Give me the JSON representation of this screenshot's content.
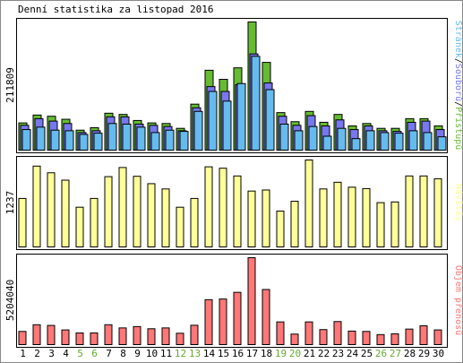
{
  "chart_data": {
    "type": "bar",
    "title": "Denní statistika za listopad 2016",
    "categories": [
      "1",
      "2",
      "3",
      "4",
      "5",
      "6",
      "7",
      "8",
      "9",
      "10",
      "11",
      "12",
      "13",
      "14",
      "15",
      "16",
      "17",
      "18",
      "19",
      "20",
      "21",
      "22",
      "23",
      "24",
      "25",
      "26",
      "27",
      "28",
      "29",
      "30"
    ],
    "weekend_days": [
      "5",
      "6",
      "12",
      "13",
      "19",
      "20",
      "26",
      "27"
    ],
    "colors": {
      "frame": "#000000",
      "grid": "#c8c8c8",
      "weekday_label": "#000000",
      "weekend_label": "#66aa33",
      "hits": "#66bb33",
      "files": "#7777ee",
      "pages": "#66bbee",
      "visits": "#ffff99",
      "volume": "#ff7777"
    },
    "panels": [
      {
        "name": "requests",
        "max_label": "211809",
        "ymax": 211809,
        "ylabel_parts": [
          "Stránek",
          "Souborů",
          "Přístupů"
        ],
        "ylabel_separator": "/",
        "series": [
          {
            "name": "Přístupů",
            "color": "#66bb33",
            "values": [
              45000,
              58000,
              56000,
              51000,
              33000,
              37000,
              61000,
              59000,
              49000,
              45000,
              44000,
              36000,
              76000,
              132000,
              117000,
              136000,
              211809,
              145000,
              62000,
              47000,
              64000,
              46000,
              59000,
              40000,
              44000,
              36000,
              36000,
              52000,
              52000,
              40000
            ]
          },
          {
            "name": "Souborů",
            "color": "#7777ee",
            "values": [
              41000,
              52000,
              48000,
              44000,
              29000,
              32000,
              55000,
              55000,
              43000,
              41000,
              39000,
              32000,
              70000,
              105000,
              97000,
              108000,
              159000,
              111000,
              56000,
              41000,
              57000,
              40000,
              50000,
              34000,
              40000,
              32000,
              31000,
              46000,
              48000,
              34000
            ]
          },
          {
            "name": "Stránek",
            "color": "#66bbee",
            "values": [
              34000,
              38000,
              33000,
              32000,
              26000,
              28000,
              44000,
              43000,
              38000,
              29000,
              33000,
              31000,
              64000,
              97000,
              81000,
              110000,
              155000,
              100000,
              43000,
              32000,
              39000,
              23000,
              36000,
              19000,
              32000,
              29000,
              28000,
              32000,
              29000,
              22000
            ]
          }
        ]
      },
      {
        "name": "visits",
        "max_label": "1237",
        "ymax": 1237,
        "ylabel_parts": [
          "Návštěv"
        ],
        "ylabel_separator": "",
        "series": [
          {
            "name": "Návštěv",
            "color": "#ffff99",
            "values": [
              690,
              1150,
              1055,
              950,
              565,
              690,
              1000,
              1130,
              1005,
              900,
              825,
              565,
              690,
              1140,
              1120,
              1010,
              795,
              810,
              510,
              650,
              1237,
              825,
              920,
              850,
              830,
              630,
              640,
              1010,
              1010,
              970
            ]
          }
        ]
      },
      {
        "name": "volume",
        "max_label": "5204040",
        "ymax": 5204040,
        "ylabel_parts": [
          "Objem přenosů"
        ],
        "ylabel_separator": "",
        "series": [
          {
            "name": "Objem přenosů",
            "color": "#ff7777",
            "values": [
              790000,
              1190000,
              1150000,
              880000,
              700000,
              700000,
              1190000,
              1000000,
              1080000,
              950000,
              1000000,
              680000,
              1160000,
              2690000,
              2730000,
              3130000,
              5204040,
              3300000,
              1360000,
              630000,
              1360000,
              900000,
              1380000,
              810000,
              790000,
              600000,
              650000,
              930000,
              1130000,
              880000
            ]
          }
        ]
      }
    ]
  }
}
